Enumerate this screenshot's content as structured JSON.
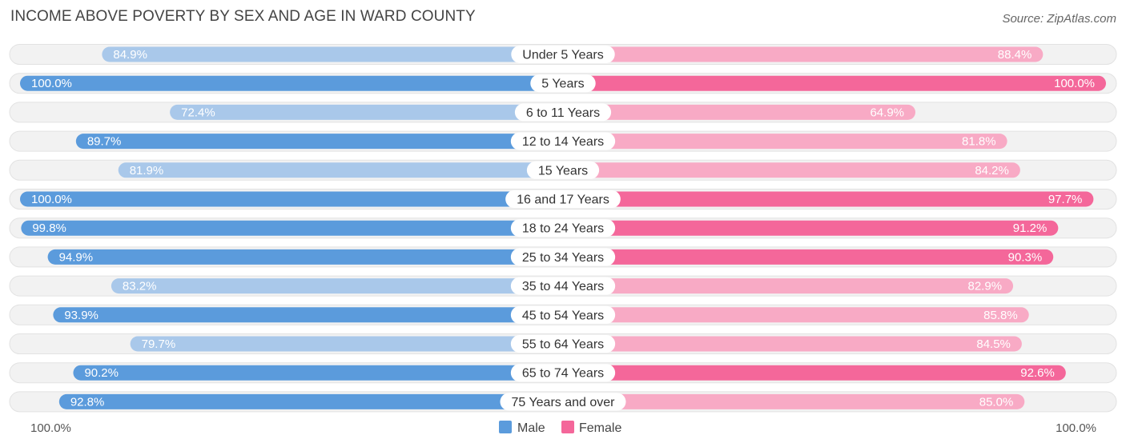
{
  "chart_data": {
    "type": "bar",
    "title": "INCOME ABOVE POVERTY BY SEX AND AGE IN WARD COUNTY",
    "source": "Source: ZipAtlas.com",
    "categories": [
      "Under 5 Years",
      "5 Years",
      "6 to 11 Years",
      "12 to 14 Years",
      "15 Years",
      "16 and 17 Years",
      "18 to 24 Years",
      "25 to 34 Years",
      "35 to 44 Years",
      "45 to 54 Years",
      "55 to 64 Years",
      "65 to 74 Years",
      "75 Years and over"
    ],
    "series": [
      {
        "name": "Male",
        "values": [
          84.9,
          100.0,
          72.4,
          89.7,
          81.9,
          100.0,
          99.8,
          94.9,
          83.2,
          93.9,
          79.7,
          90.2,
          92.8
        ],
        "labels": [
          "84.9%",
          "100.0%",
          "72.4%",
          "89.7%",
          "81.9%",
          "100.0%",
          "99.8%",
          "94.9%",
          "83.2%",
          "93.9%",
          "79.7%",
          "90.2%",
          "92.8%"
        ]
      },
      {
        "name": "Female",
        "values": [
          88.4,
          100.0,
          64.9,
          81.8,
          84.2,
          97.7,
          91.2,
          90.3,
          82.9,
          85.8,
          84.5,
          92.6,
          85.0
        ],
        "labels": [
          "88.4%",
          "100.0%",
          "64.9%",
          "81.8%",
          "84.2%",
          "97.7%",
          "91.2%",
          "90.3%",
          "82.9%",
          "85.8%",
          "84.5%",
          "92.6%",
          "85.0%"
        ]
      }
    ],
    "axis": {
      "left_label": "100.0%",
      "right_label": "100.0%",
      "range": [
        0,
        100
      ]
    },
    "legend": {
      "position": "bottom-center",
      "items": [
        "Male",
        "Female"
      ]
    },
    "colors": {
      "male_strong": "#5b9bdc",
      "male_light": "#a9c8ea",
      "female_strong": "#f4679a",
      "female_light": "#f8aac5",
      "track": "#f0f0f0"
    }
  }
}
